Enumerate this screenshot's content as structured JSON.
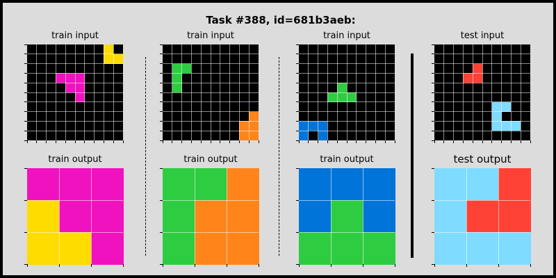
{
  "title": "Task #388, id=681b3aeb:",
  "colors": {
    "0": "#000000",
    "1": "#0074D9",
    "2": "#FF4136",
    "3": "#2ECC40",
    "4": "#FFDC00",
    "6": "#F012BE",
    "7": "#FF851B",
    "8": "#7FDBFF"
  },
  "panels": [
    {
      "label": "train input",
      "rows": 10,
      "cols": 10,
      "grid": [
        [
          0,
          0,
          0,
          0,
          0,
          0,
          0,
          0,
          4,
          0
        ],
        [
          0,
          0,
          0,
          0,
          0,
          0,
          0,
          0,
          4,
          4
        ],
        [
          0,
          0,
          0,
          0,
          0,
          0,
          0,
          0,
          0,
          0
        ],
        [
          0,
          0,
          0,
          6,
          6,
          6,
          0,
          0,
          0,
          0
        ],
        [
          0,
          0,
          0,
          0,
          6,
          6,
          0,
          0,
          0,
          0
        ],
        [
          0,
          0,
          0,
          0,
          0,
          6,
          0,
          0,
          0,
          0
        ],
        [
          0,
          0,
          0,
          0,
          0,
          0,
          0,
          0,
          0,
          0
        ],
        [
          0,
          0,
          0,
          0,
          0,
          0,
          0,
          0,
          0,
          0
        ],
        [
          0,
          0,
          0,
          0,
          0,
          0,
          0,
          0,
          0,
          0
        ],
        [
          0,
          0,
          0,
          0,
          0,
          0,
          0,
          0,
          0,
          0
        ]
      ]
    },
    {
      "label": "train input",
      "rows": 10,
      "cols": 10,
      "grid": [
        [
          0,
          0,
          0,
          0,
          0,
          0,
          0,
          0,
          0,
          0
        ],
        [
          0,
          0,
          0,
          0,
          0,
          0,
          0,
          0,
          0,
          0
        ],
        [
          0,
          3,
          3,
          0,
          0,
          0,
          0,
          0,
          0,
          0
        ],
        [
          0,
          3,
          0,
          0,
          0,
          0,
          0,
          0,
          0,
          0
        ],
        [
          0,
          3,
          0,
          0,
          0,
          0,
          0,
          0,
          0,
          0
        ],
        [
          0,
          0,
          0,
          0,
          0,
          0,
          0,
          0,
          0,
          0
        ],
        [
          0,
          0,
          0,
          0,
          0,
          0,
          0,
          0,
          0,
          0
        ],
        [
          0,
          0,
          0,
          0,
          0,
          0,
          0,
          0,
          0,
          7
        ],
        [
          0,
          0,
          0,
          0,
          0,
          0,
          0,
          0,
          7,
          7
        ],
        [
          0,
          0,
          0,
          0,
          0,
          0,
          0,
          0,
          7,
          7
        ]
      ]
    },
    {
      "label": "train input",
      "rows": 10,
      "cols": 10,
      "grid": [
        [
          0,
          0,
          0,
          0,
          0,
          0,
          0,
          0,
          0,
          0
        ],
        [
          0,
          0,
          0,
          0,
          0,
          0,
          0,
          0,
          0,
          0
        ],
        [
          0,
          0,
          0,
          0,
          0,
          0,
          0,
          0,
          0,
          0
        ],
        [
          0,
          0,
          0,
          0,
          0,
          0,
          0,
          0,
          0,
          0
        ],
        [
          0,
          0,
          0,
          0,
          3,
          0,
          0,
          0,
          0,
          0
        ],
        [
          0,
          0,
          0,
          3,
          3,
          3,
          0,
          0,
          0,
          0
        ],
        [
          0,
          0,
          0,
          0,
          0,
          0,
          0,
          0,
          0,
          0
        ],
        [
          0,
          0,
          0,
          0,
          0,
          0,
          0,
          0,
          0,
          0
        ],
        [
          1,
          1,
          1,
          0,
          0,
          0,
          0,
          0,
          0,
          0
        ],
        [
          1,
          0,
          1,
          0,
          0,
          0,
          0,
          0,
          0,
          0
        ]
      ]
    },
    {
      "label": "test input",
      "rows": 10,
      "cols": 10,
      "grid": [
        [
          0,
          0,
          0,
          0,
          0,
          0,
          0,
          0,
          0,
          0
        ],
        [
          0,
          0,
          0,
          0,
          0,
          0,
          0,
          0,
          0,
          0
        ],
        [
          0,
          0,
          0,
          0,
          2,
          0,
          0,
          0,
          0,
          0
        ],
        [
          0,
          0,
          0,
          2,
          2,
          0,
          0,
          0,
          0,
          0
        ],
        [
          0,
          0,
          0,
          0,
          0,
          0,
          0,
          0,
          0,
          0
        ],
        [
          0,
          0,
          0,
          0,
          0,
          0,
          0,
          0,
          0,
          0
        ],
        [
          0,
          0,
          0,
          0,
          0,
          0,
          8,
          8,
          0,
          0
        ],
        [
          0,
          0,
          0,
          0,
          0,
          0,
          8,
          0,
          0,
          0
        ],
        [
          0,
          0,
          0,
          0,
          0,
          0,
          8,
          8,
          8,
          0
        ],
        [
          0,
          0,
          0,
          0,
          0,
          0,
          0,
          0,
          0,
          0
        ]
      ]
    },
    {
      "label": "train output",
      "rows": 3,
      "cols": 3,
      "grid": [
        [
          6,
          6,
          6
        ],
        [
          4,
          6,
          6
        ],
        [
          4,
          4,
          6
        ]
      ]
    },
    {
      "label": "train output",
      "rows": 3,
      "cols": 3,
      "grid": [
        [
          3,
          3,
          7
        ],
        [
          3,
          7,
          7
        ],
        [
          3,
          7,
          7
        ]
      ]
    },
    {
      "label": "train output",
      "rows": 3,
      "cols": 3,
      "grid": [
        [
          1,
          1,
          1
        ],
        [
          1,
          3,
          1
        ],
        [
          3,
          3,
          3
        ]
      ]
    },
    {
      "label": "test output",
      "rows": 3,
      "cols": 3,
      "grid": [
        [
          8,
          8,
          2
        ],
        [
          8,
          2,
          2
        ],
        [
          8,
          8,
          8
        ]
      ]
    }
  ]
}
